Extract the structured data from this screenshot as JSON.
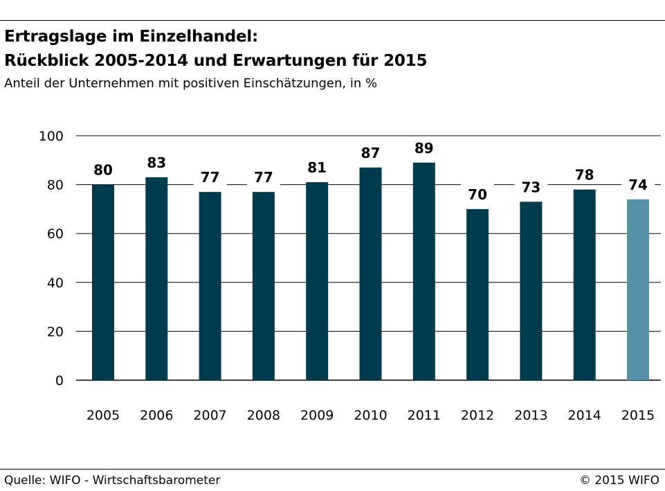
{
  "header": {
    "title_line1": "Ertragslage im Einzelhandel:",
    "title_line2": "Rückblick 2005-2014 und Erwartungen für 2015",
    "subtitle": "Anteil der Unternehmen mit positiven Einschätzungen, in %"
  },
  "footer": {
    "source": "Quelle: WIFO - Wirtschaftsbarometer",
    "copyright": "© 2015 WIFO"
  },
  "colors": {
    "bar_actual": "#003a4f",
    "bar_expectation": "#5591a7",
    "axis": "#000000"
  },
  "chart_data": {
    "type": "bar",
    "categories": [
      "2005",
      "2006",
      "2007",
      "2008",
      "2009",
      "2010",
      "2011",
      "2012",
      "2013",
      "2014",
      "2015"
    ],
    "values": [
      80,
      83,
      77,
      77,
      81,
      87,
      89,
      70,
      73,
      78,
      74
    ],
    "highlight": [
      "actual",
      "actual",
      "actual",
      "actual",
      "actual",
      "actual",
      "actual",
      "actual",
      "actual",
      "actual",
      "expectation"
    ],
    "yticks": [
      0,
      20,
      40,
      60,
      80,
      100
    ],
    "ylim": [
      0,
      100
    ],
    "grid": true,
    "data_labels": true
  }
}
